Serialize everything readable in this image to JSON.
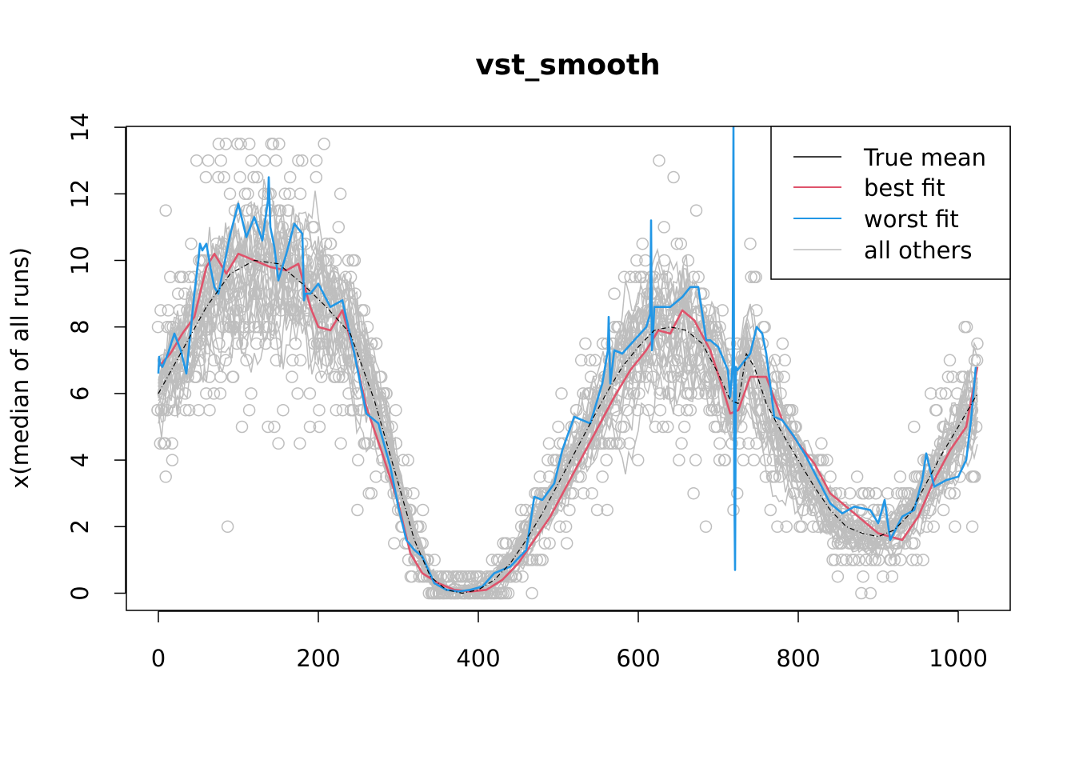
{
  "chart_data": {
    "type": "line",
    "title": "vst_smooth",
    "xlabel": "",
    "ylabel": "x(median of all runs)",
    "xlim": [
      0,
      1024
    ],
    "ylim": [
      0,
      14
    ],
    "x_ticks": [
      0,
      200,
      400,
      600,
      800,
      1000
    ],
    "y_ticks": [
      0,
      2,
      4,
      6,
      8,
      10,
      12,
      14
    ],
    "legend": {
      "position": "top-right",
      "entries": [
        {
          "label": "True mean",
          "color": "#000000"
        },
        {
          "label": "best fit",
          "color": "#DF536B"
        },
        {
          "label": "worst fit",
          "color": "#2297E6"
        },
        {
          "label": "all others",
          "color": "#BEBEBE"
        }
      ]
    },
    "series": [
      {
        "name": "True mean",
        "color": "#000000",
        "x": [
          0,
          30,
          60,
          90,
          120,
          150,
          180,
          210,
          240,
          270,
          300,
          320,
          340,
          360,
          380,
          400,
          420,
          440,
          460,
          480,
          500,
          520,
          540,
          560,
          580,
          600,
          620,
          640,
          660,
          680,
          700,
          715,
          725,
          735,
          745,
          760,
          780,
          800,
          820,
          840,
          860,
          880,
          900,
          920,
          940,
          960,
          980,
          1000,
          1024
        ],
        "y": [
          6.0,
          7.3,
          8.6,
          9.6,
          10.0,
          9.9,
          9.3,
          8.6,
          7.8,
          5.8,
          3.3,
          1.6,
          0.5,
          0.1,
          0.0,
          0.1,
          0.4,
          0.9,
          1.6,
          2.4,
          3.3,
          4.2,
          5.1,
          6.0,
          6.8,
          7.4,
          7.9,
          8.0,
          7.9,
          7.5,
          6.6,
          5.8,
          5.7,
          7.2,
          6.8,
          5.7,
          4.8,
          4.0,
          3.2,
          2.5,
          2.0,
          1.8,
          1.7,
          1.9,
          2.4,
          3.3,
          4.2,
          5.0,
          6.0
        ]
      },
      {
        "name": "best fit",
        "color": "#DF536B",
        "x": [
          0,
          15,
          30,
          45,
          60,
          70,
          85,
          100,
          120,
          140,
          160,
          175,
          190,
          200,
          215,
          230,
          245,
          260,
          280,
          300,
          315,
          330,
          350,
          370,
          390,
          410,
          430,
          450,
          470,
          490,
          510,
          530,
          550,
          570,
          590,
          610,
          625,
          640,
          655,
          670,
          690,
          705,
          715,
          725,
          740,
          760,
          780,
          800,
          820,
          840,
          860,
          880,
          900,
          915,
          930,
          950,
          970,
          990,
          1010,
          1024
        ],
        "y": [
          6.8,
          7.2,
          7.8,
          8.3,
          9.8,
          10.2,
          9.6,
          10.2,
          10.0,
          9.8,
          9.7,
          9.9,
          8.6,
          8.0,
          7.9,
          8.5,
          7.2,
          5.6,
          4.2,
          2.7,
          1.2,
          0.6,
          0.3,
          0.1,
          0.05,
          0.1,
          0.4,
          0.9,
          1.6,
          2.3,
          3.2,
          4.1,
          5.0,
          5.9,
          6.7,
          7.3,
          7.9,
          7.8,
          8.5,
          8.2,
          7.3,
          6.2,
          5.4,
          5.5,
          6.5,
          6.5,
          5.2,
          4.5,
          3.9,
          3.0,
          2.6,
          2.2,
          1.8,
          1.7,
          1.6,
          2.3,
          3.4,
          4.3,
          5.0,
          6.8
        ]
      },
      {
        "name": "worst fit",
        "color": "#2297E6",
        "x": [
          0,
          1,
          2,
          5,
          12,
          20,
          28,
          35,
          40,
          45,
          50,
          52,
          55,
          60,
          65,
          70,
          75,
          80,
          90,
          100,
          110,
          120,
          130,
          137,
          138,
          140,
          145,
          150,
          160,
          170,
          180,
          182,
          184,
          190,
          200,
          215,
          230,
          245,
          260,
          275,
          290,
          300,
          310,
          320,
          330,
          345,
          360,
          375,
          390,
          405,
          420,
          440,
          460,
          470,
          480,
          495,
          505,
          520,
          540,
          555,
          562,
          563,
          565,
          570,
          580,
          595,
          610,
          615,
          616,
          617,
          618,
          620,
          640,
          655,
          665,
          675,
          685,
          690,
          700,
          712,
          715,
          718,
          719,
          720,
          721,
          722,
          724,
          730,
          740,
          748,
          755,
          760,
          770,
          780,
          795,
          810,
          825,
          840,
          855,
          870,
          890,
          900,
          908,
          915,
          930,
          945,
          955,
          960,
          970,
          985,
          1000,
          1010,
          1016,
          1022
        ],
        "y": [
          6.6,
          7.1,
          6.9,
          6.8,
          7.2,
          7.8,
          7.3,
          6.6,
          7.8,
          9.0,
          10.0,
          10.5,
          10.3,
          10.5,
          9.8,
          9.2,
          9.0,
          9.6,
          10.8,
          11.7,
          10.7,
          11.3,
          10.6,
          11.8,
          12.5,
          11.0,
          10.4,
          9.4,
          10.2,
          11.1,
          10.8,
          8.8,
          9.0,
          9.0,
          9.3,
          8.6,
          8.8,
          7.2,
          5.4,
          5.1,
          3.8,
          2.6,
          1.6,
          1.3,
          1.1,
          0.3,
          0.1,
          0.05,
          0.1,
          0.2,
          0.6,
          0.8,
          1.3,
          2.9,
          2.8,
          3.3,
          4.3,
          5.3,
          5.1,
          6.3,
          7.3,
          8.3,
          6.3,
          7.3,
          7.2,
          7.6,
          8.0,
          8.4,
          11.2,
          7.3,
          7.6,
          8.6,
          8.6,
          8.9,
          9.2,
          9.2,
          7.6,
          7.6,
          7.4,
          6.7,
          5.9,
          6.9,
          14.0,
          3.4,
          0.7,
          6.8,
          6.7,
          6.9,
          7.2,
          8.0,
          7.8,
          7.2,
          5.3,
          5.2,
          4.7,
          4.1,
          3.4,
          2.7,
          2.4,
          2.6,
          2.5,
          2.1,
          2.8,
          1.6,
          2.3,
          2.5,
          3.4,
          4.2,
          3.2,
          3.4,
          3.5,
          4.0,
          5.2,
          6.8
        ]
      }
    ],
    "other_runs": {
      "name": "all others",
      "color": "#BEBEBE",
      "note": "many grey run curves and observation points scattered around the true mean"
    }
  }
}
